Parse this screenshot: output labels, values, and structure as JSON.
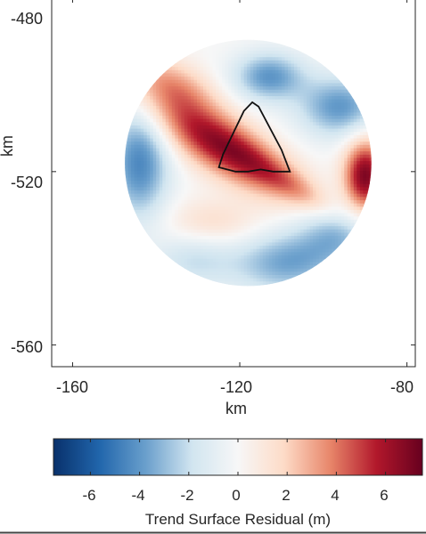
{
  "chart_data": {
    "type": "heatmap",
    "title": "",
    "xlabel": "km",
    "ylabel": "km",
    "xlim": [
      -165,
      -78
    ],
    "ylim": [
      -565,
      -480
    ],
    "x_ticks": [
      -160,
      -120,
      -80
    ],
    "x_tick_labels": [
      "-160",
      "-120",
      "-80"
    ],
    "y_ticks": [
      -480,
      -520,
      -560
    ],
    "y_tick_labels": [
      "-480",
      "-520",
      "-560"
    ],
    "grid": false,
    "colormap": "diverging blue-white-red",
    "colormap_stops": [
      "#08306b",
      "#2166ac",
      "#6a9fcc",
      "#d1e5f0",
      "#f7f7f7",
      "#fddbc7",
      "#e8866a",
      "#b2182b",
      "#67001f"
    ],
    "colorbar": {
      "label": "Trend Surface Residual (m)",
      "range": [
        -7.5,
        7.5
      ],
      "ticks": [
        -6,
        -4,
        -2,
        0,
        2,
        4,
        6
      ],
      "tick_labels": [
        "-6",
        "-4",
        "-2",
        "0",
        "2",
        "4",
        "6"
      ],
      "orientation": "horizontal",
      "placement": "below"
    },
    "masked_region": {
      "shape": "circle",
      "center": [
        -118,
        -518
      ],
      "radius": 29.5
    },
    "field_features": [
      {
        "kind": "high",
        "x": -124,
        "y": -514,
        "value": 6.5,
        "sx": 13,
        "sy": 4.5,
        "rotation_deg": -30
      },
      {
        "kind": "high",
        "x": -90,
        "y": -521,
        "value": 7.0,
        "sx": 3.5,
        "sy": 6
      },
      {
        "kind": "high",
        "x": -136,
        "y": -500,
        "value": 3.0,
        "sx": 8,
        "sy": 4,
        "rotation_deg": -25
      },
      {
        "kind": "high",
        "x": -108,
        "y": -523,
        "value": 2.0,
        "sx": 10,
        "sy": 2.5,
        "rotation_deg": -30
      },
      {
        "kind": "high",
        "x": -127,
        "y": -532,
        "value": 1.8,
        "sx": 8,
        "sy": 4
      },
      {
        "kind": "low",
        "x": -144,
        "y": -518,
        "value": -4.5,
        "sx": 5,
        "sy": 9
      },
      {
        "kind": "low",
        "x": -113,
        "y": -498,
        "value": -4.0,
        "sx": 6,
        "sy": 4
      },
      {
        "kind": "low",
        "x": -96,
        "y": -505,
        "value": -4.0,
        "sx": 7,
        "sy": 5
      },
      {
        "kind": "low",
        "x": -109,
        "y": -541,
        "value": -3.5,
        "sx": 9,
        "sy": 5
      },
      {
        "kind": "low",
        "x": -131,
        "y": -540,
        "value": -2.0,
        "sx": 7,
        "sy": 5
      },
      {
        "kind": "low",
        "x": -96,
        "y": -534,
        "value": -3.0,
        "sx": 7,
        "sy": 5
      }
    ],
    "outline_polygon": [
      [
        -124,
        -516
      ],
      [
        -119,
        -506
      ],
      [
        -117,
        -504
      ],
      [
        -115.5,
        -505
      ],
      [
        -110,
        -515
      ],
      [
        -108,
        -520
      ],
      [
        -112,
        -520
      ],
      [
        -115,
        -519.5
      ],
      [
        -118,
        -520
      ],
      [
        -121,
        -520
      ],
      [
        -123,
        -519.5
      ],
      [
        -125,
        -519
      ],
      [
        -124,
        -516
      ]
    ]
  }
}
